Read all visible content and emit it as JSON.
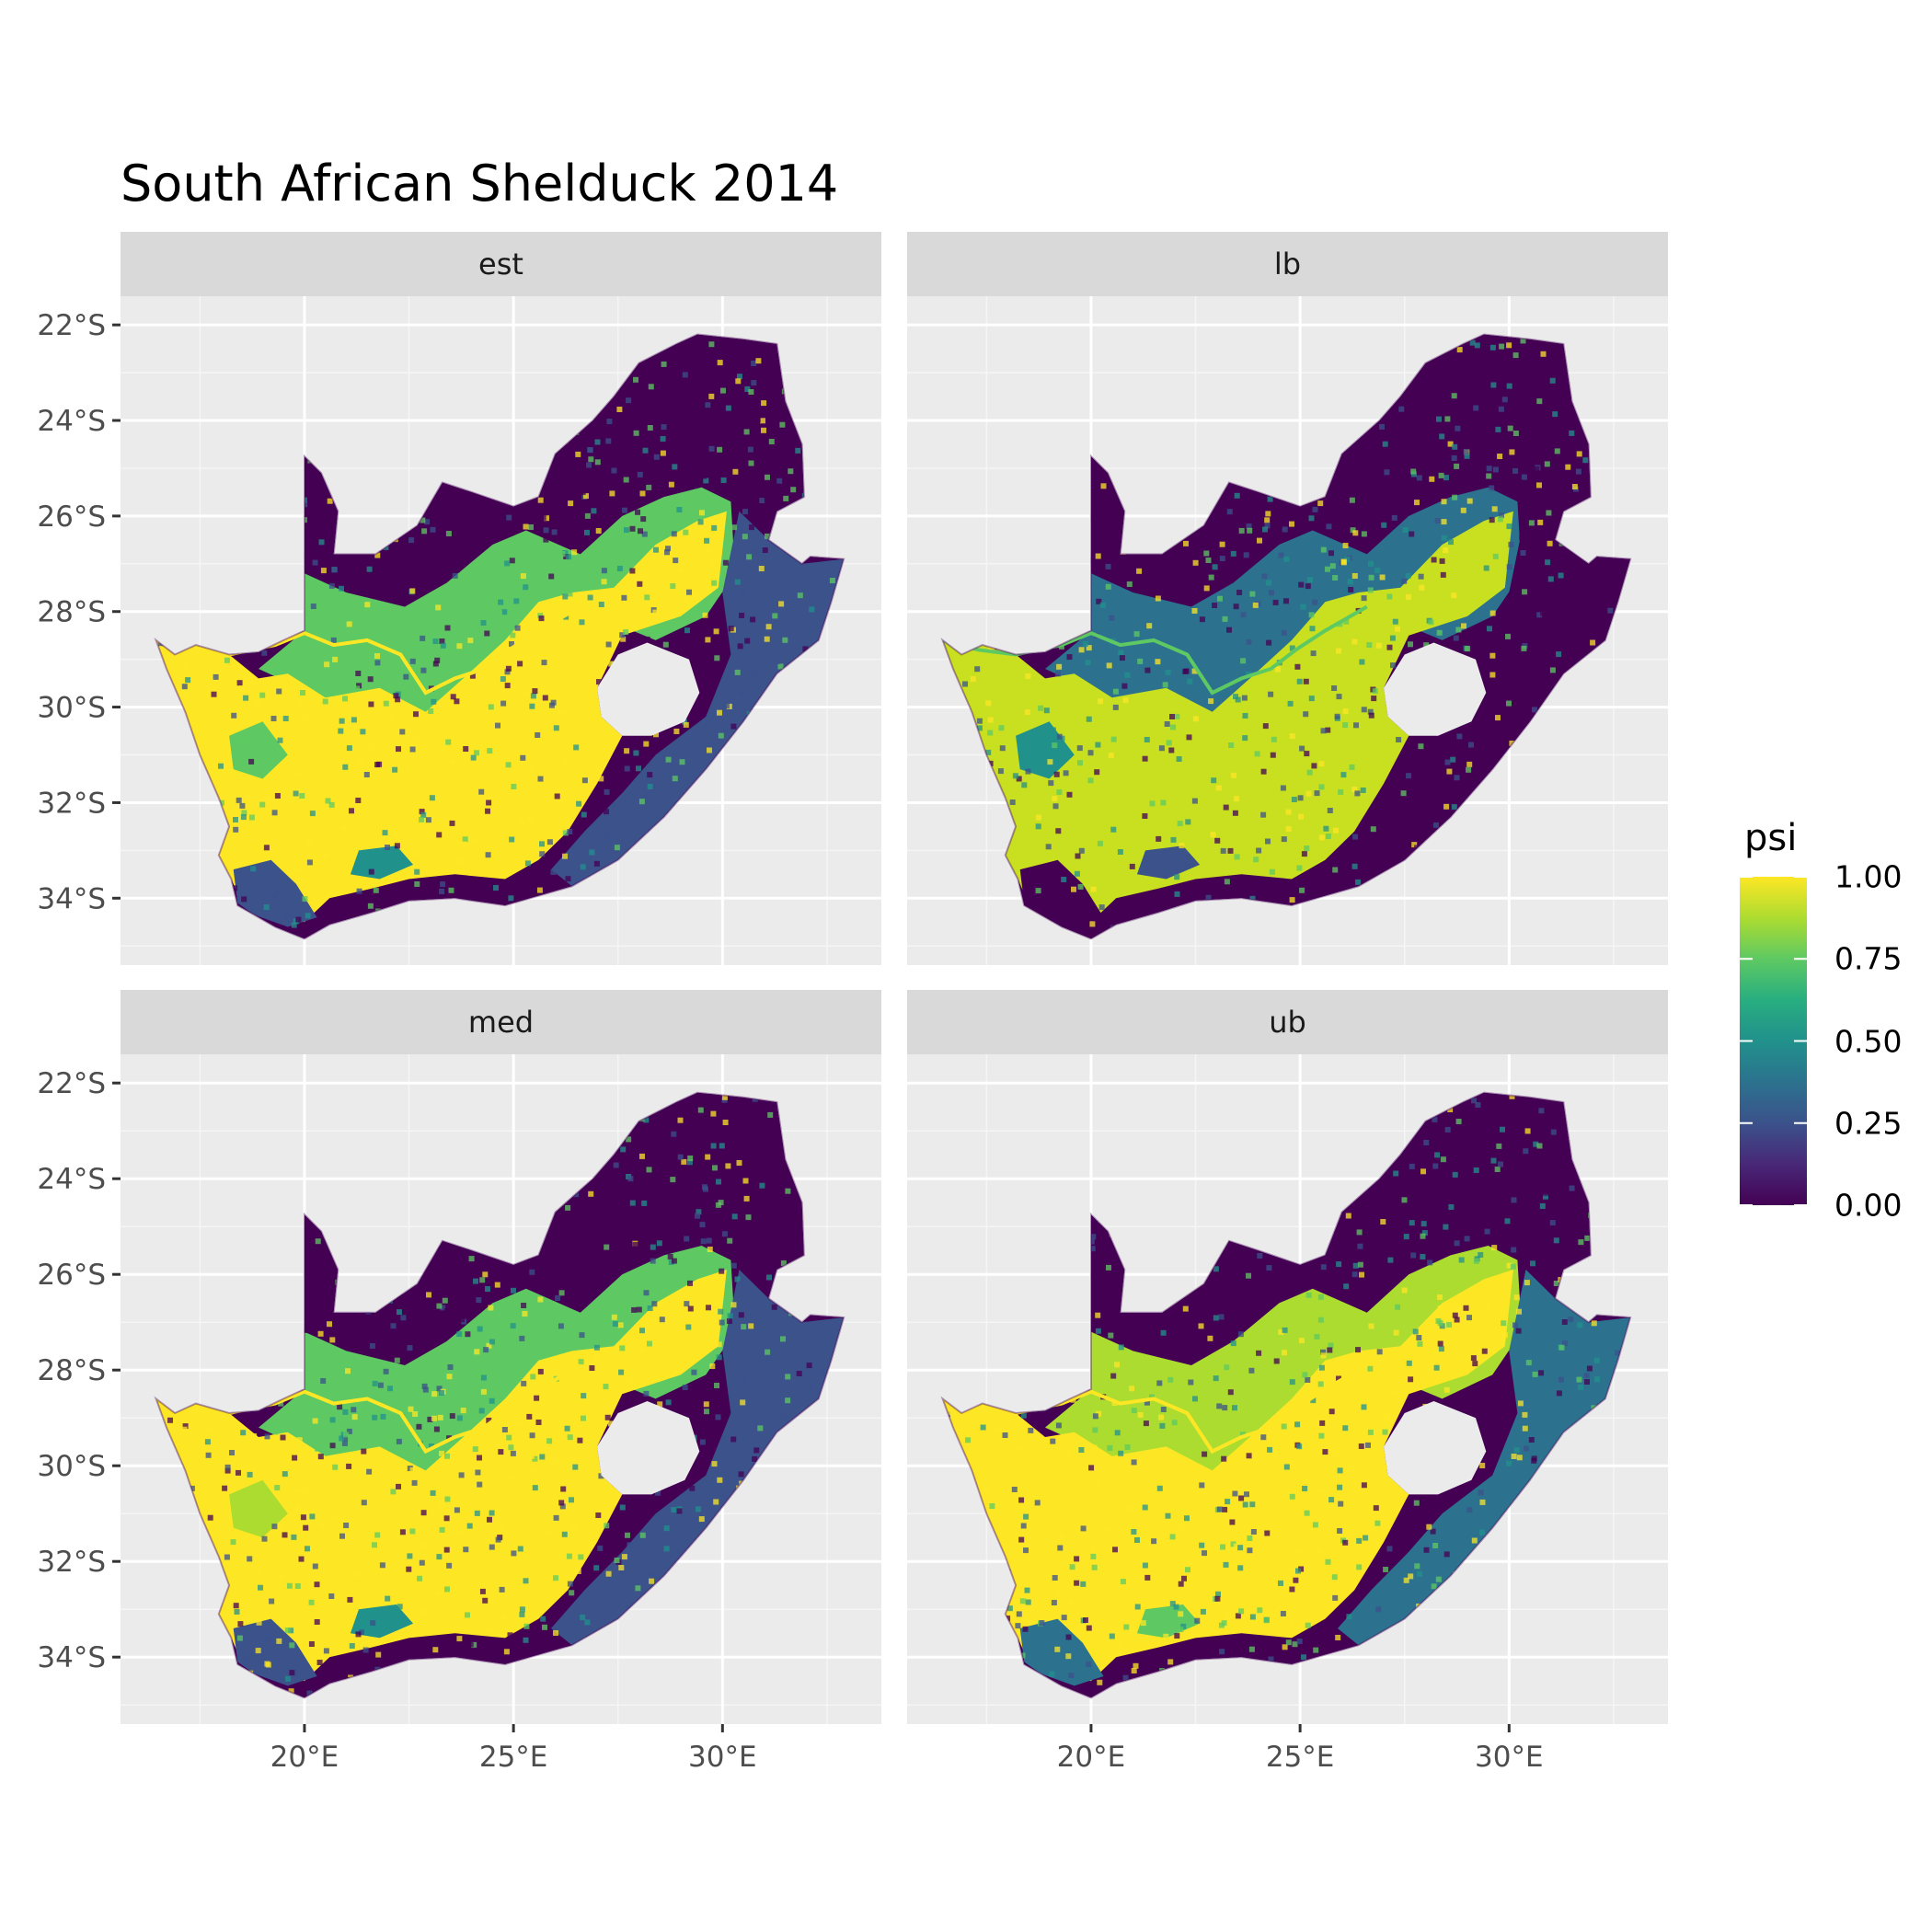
{
  "title": "South African Shelduck 2014",
  "chart_data": {
    "type": "heatmap",
    "title": "South African Shelduck 2014",
    "facets": [
      "est",
      "lb",
      "med",
      "ub"
    ],
    "x_axis": {
      "label": "",
      "ticks": [
        20,
        25,
        30
      ],
      "tick_labels": [
        "20°E",
        "25°E",
        "30°E"
      ],
      "range": [
        15.6,
        33.8
      ]
    },
    "y_axis": {
      "label": "",
      "ticks": [
        -22,
        -24,
        -26,
        -28,
        -30,
        -32,
        -34
      ],
      "tick_labels": [
        "22°S",
        "24°S",
        "26°S",
        "28°S",
        "30°S",
        "32°S",
        "34°S"
      ],
      "range": [
        -35.4,
        -21.4
      ]
    },
    "grid": true,
    "legend": {
      "title": "psi",
      "position": "right",
      "breaks": [
        1.0,
        0.75,
        0.5,
        0.25,
        0.0
      ],
      "break_labels": [
        "1.00",
        "0.75",
        "0.50",
        "0.25",
        "0.00"
      ],
      "colormap": "viridis",
      "colors": [
        "#440154",
        "#3b528b",
        "#21918c",
        "#5ec962",
        "#fde725"
      ]
    },
    "summary": "Occupancy probability (psi) across South Africa; high (yellow) in the west, central Karoo and south, low (purple) in the northeast and along the eastern coast; lb lowest, ub highest."
  },
  "colors": {
    "panel_bg": "#ebebeb",
    "strip_bg": "#d9d9d9",
    "grid": "#ffffff",
    "axis_text": "#4d4d4d"
  }
}
